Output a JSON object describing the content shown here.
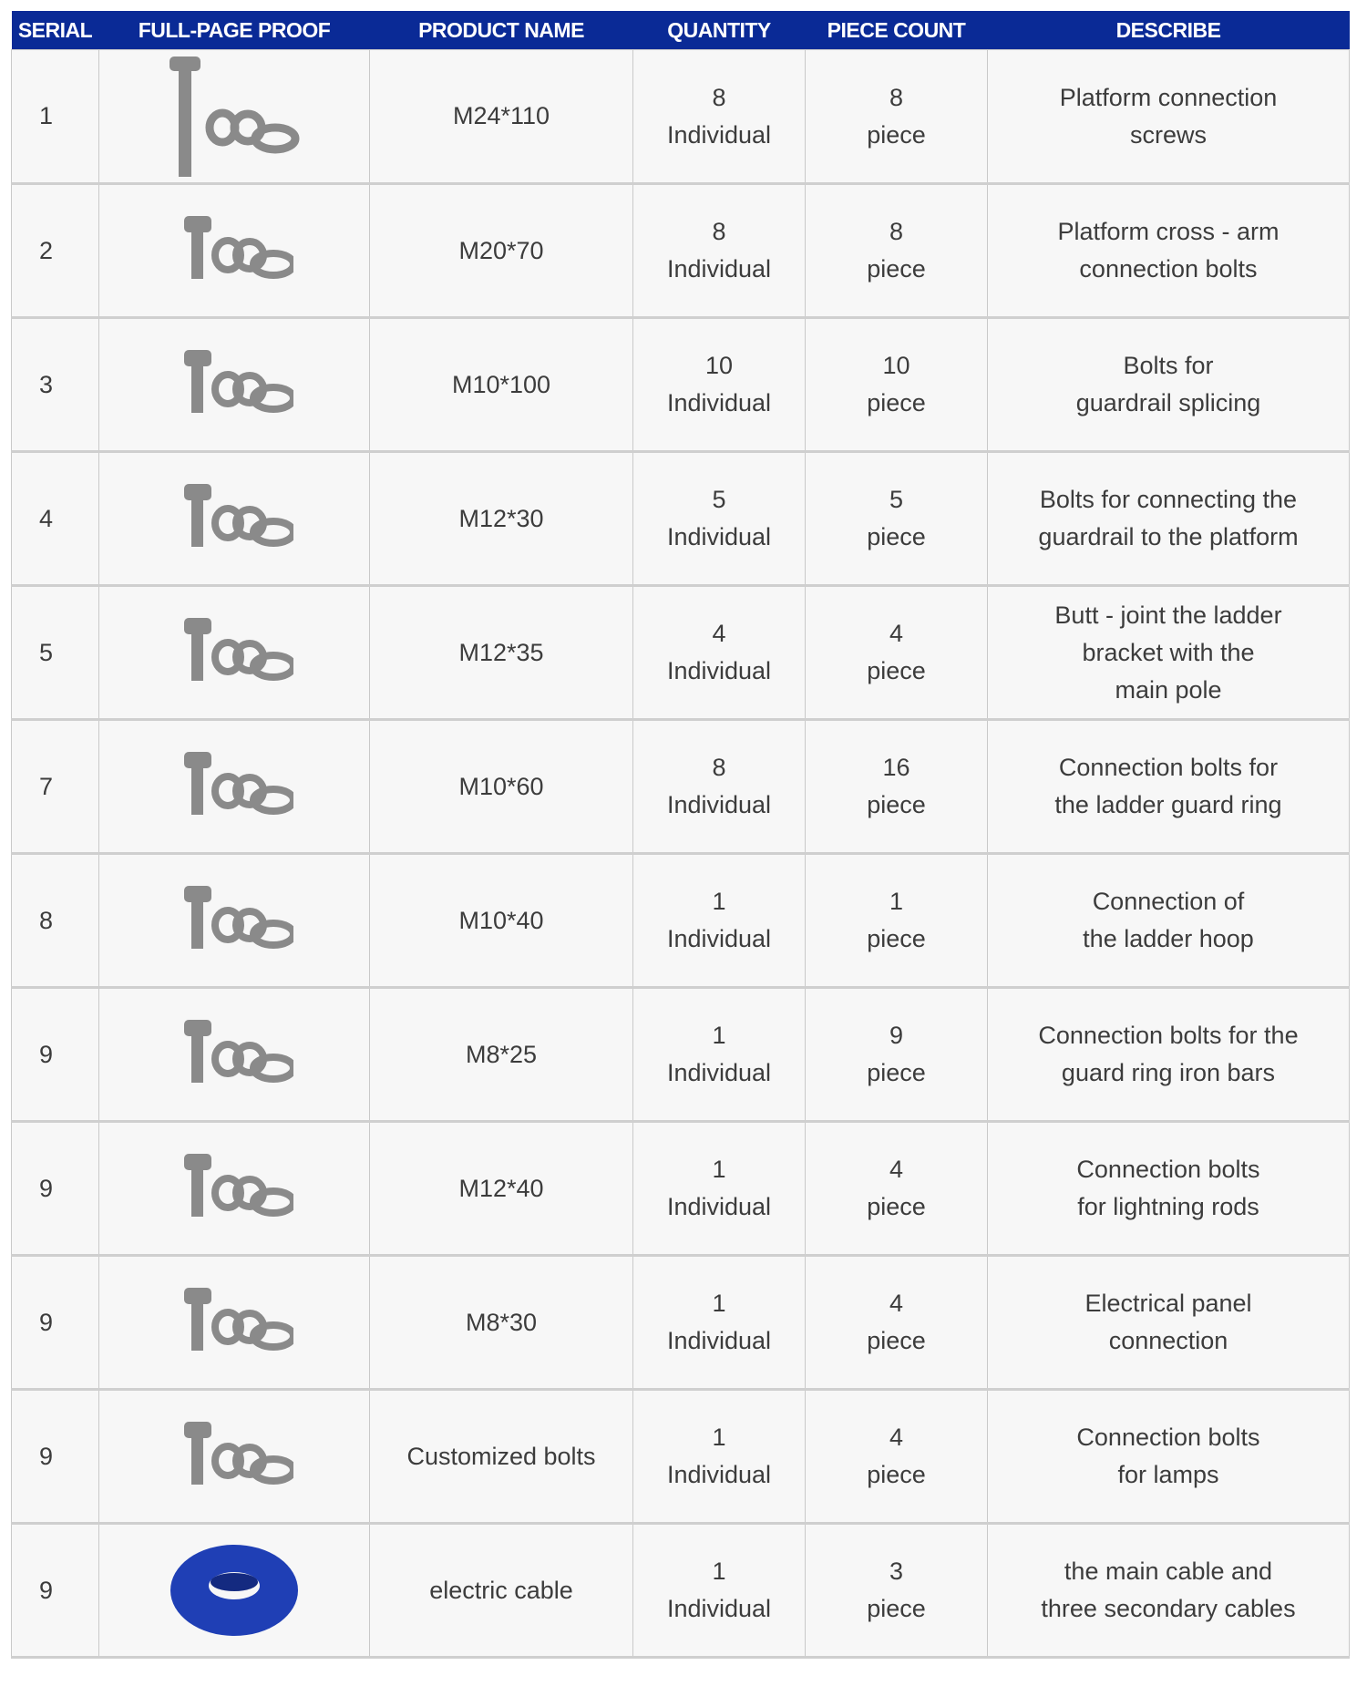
{
  "headers": [
    "SERIAL",
    "FULL-PAGE PROOF",
    "PRODUCT NAME",
    "QUANTITY",
    "PIECE COUNT",
    "DESCRIBE"
  ],
  "colors": {
    "header_bg": "#0a2a96",
    "bolt": "#8a8a8a",
    "cable": "#1f3fb5"
  },
  "rows": [
    {
      "serial": "1",
      "icon": "bolt-long-icon",
      "name": "M24*110",
      "qty": "8",
      "qty_unit": "Individual",
      "pieces": "8",
      "piece_unit": "piece",
      "desc": [
        "Platform connection",
        "screws"
      ]
    },
    {
      "serial": "2",
      "icon": "bolt-icon",
      "name": "M20*70",
      "qty": "8",
      "qty_unit": "Individual",
      "pieces": "8",
      "piece_unit": "piece",
      "desc": [
        "Platform cross - arm",
        "connection bolts"
      ]
    },
    {
      "serial": "3",
      "icon": "bolt-icon",
      "name": "M10*100",
      "qty": "10",
      "qty_unit": "Individual",
      "pieces": "10",
      "piece_unit": "piece",
      "desc": [
        "Bolts for",
        "guardrail splicing"
      ]
    },
    {
      "serial": "4",
      "icon": "bolt-icon",
      "name": "M12*30",
      "qty": "5",
      "qty_unit": "Individual",
      "pieces": "5",
      "piece_unit": "piece",
      "desc": [
        "Bolts for connecting the",
        "guardrail to the platform"
      ]
    },
    {
      "serial": "5",
      "icon": "bolt-icon",
      "name": "M12*35",
      "qty": "4",
      "qty_unit": "Individual",
      "pieces": "4",
      "piece_unit": "piece",
      "desc": [
        "Butt - joint the ladder",
        "bracket with the",
        "main pole"
      ]
    },
    {
      "serial": "7",
      "icon": "bolt-icon",
      "name": "M10*60",
      "qty": "8",
      "qty_unit": "Individual",
      "pieces": "16",
      "piece_unit": "piece",
      "desc": [
        "Connection bolts for",
        "the ladder guard ring"
      ]
    },
    {
      "serial": "8",
      "icon": "bolt-icon",
      "name": "M10*40",
      "qty": "1",
      "qty_unit": "Individual",
      "pieces": "1",
      "piece_unit": "piece",
      "desc": [
        "Connection of",
        "the ladder hoop"
      ]
    },
    {
      "serial": "9",
      "icon": "bolt-icon",
      "name": "M8*25",
      "qty": "1",
      "qty_unit": "Individual",
      "pieces": "9",
      "piece_unit": "piece",
      "desc": [
        "Connection bolts for the",
        "guard ring iron bars"
      ]
    },
    {
      "serial": "9",
      "icon": "bolt-icon",
      "name": "M12*40",
      "qty": "1",
      "qty_unit": "Individual",
      "pieces": "4",
      "piece_unit": "piece",
      "desc": [
        "Connection bolts",
        "for lightning rods"
      ]
    },
    {
      "serial": "9",
      "icon": "bolt-icon",
      "name": "M8*30",
      "qty": "1",
      "qty_unit": "Individual",
      "pieces": "4",
      "piece_unit": "piece",
      "desc": [
        "Electrical panel",
        "connection"
      ]
    },
    {
      "serial": "9",
      "icon": "bolt-icon",
      "name": "Customized bolts",
      "qty": "1",
      "qty_unit": "Individual",
      "pieces": "4",
      "piece_unit": "piece",
      "desc": [
        "Connection bolts",
        "for lamps"
      ]
    },
    {
      "serial": "9",
      "icon": "cable-coil-icon",
      "name": "electric cable",
      "qty": "1",
      "qty_unit": "Individual",
      "pieces": "3",
      "piece_unit": "piece",
      "desc": [
        "the main cable and",
        "three secondary cables"
      ]
    }
  ]
}
